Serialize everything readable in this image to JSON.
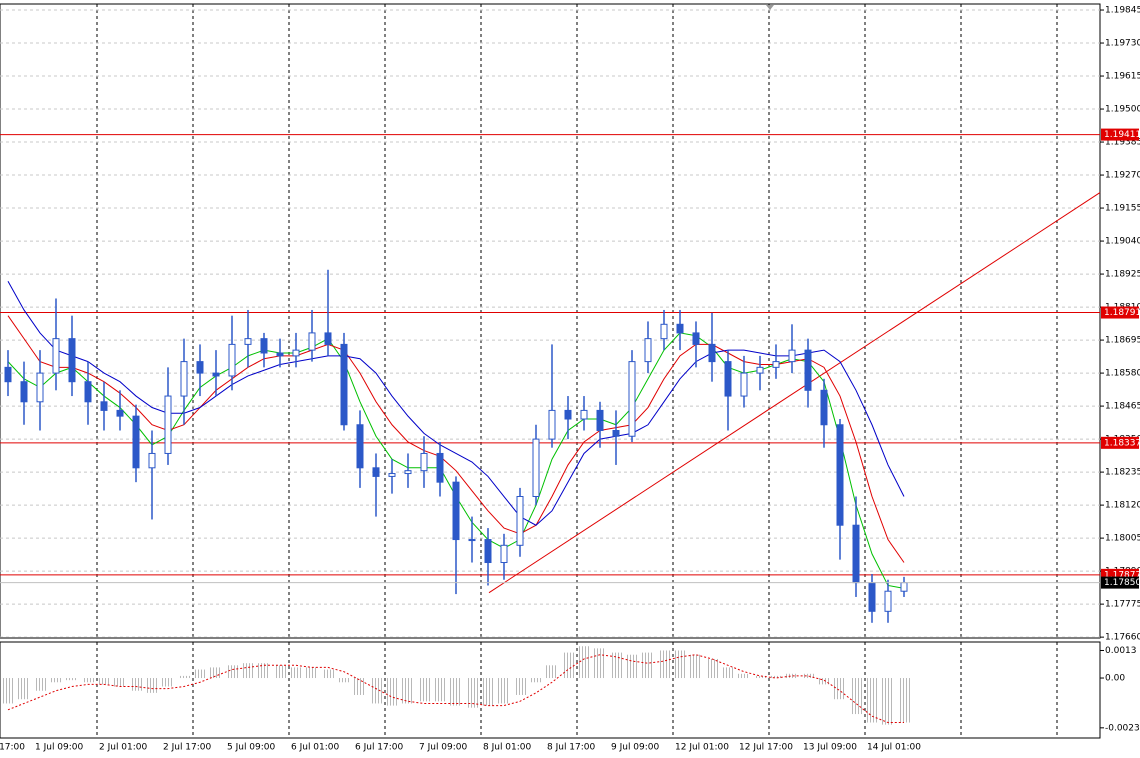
{
  "chart_data": {
    "type": "candlestick",
    "grid": true,
    "ylim": [
      1.17657,
      1.19866
    ],
    "yticks": [
      {
        "value": 1.19845,
        "label": "1.19845"
      },
      {
        "value": 1.1973,
        "label": "1.19730"
      },
      {
        "value": 1.19615,
        "label": "1.19615"
      },
      {
        "value": 1.195,
        "label": "1.19500"
      },
      {
        "value": 1.19385,
        "label": "1.19385"
      },
      {
        "value": 1.1927,
        "label": "1.19270"
      },
      {
        "value": 1.19155,
        "label": "1.19155"
      },
      {
        "value": 1.1904,
        "label": "1.19040"
      },
      {
        "value": 1.18925,
        "label": "1.18925"
      },
      {
        "value": 1.1881,
        "label": "1.18810"
      },
      {
        "value": 1.18695,
        "label": "1.18695"
      },
      {
        "value": 1.1858,
        "label": "1.18580"
      },
      {
        "value": 1.18465,
        "label": "1.18465"
      },
      {
        "value": 1.1835,
        "label": "1.18350"
      },
      {
        "value": 1.18235,
        "label": "1.18235"
      },
      {
        "value": 1.1812,
        "label": "1.18120"
      },
      {
        "value": 1.18005,
        "label": "1.18005"
      },
      {
        "value": 1.1789,
        "label": "1.17890"
      },
      {
        "value": 1.17775,
        "label": "1.17775"
      },
      {
        "value": 1.1766,
        "label": "1.17660"
      }
    ],
    "x_labels": [
      "17:00",
      "1 Jul 09:00",
      "2 Jul 01:00",
      "2 Jul 17:00",
      "5 Jul 09:00",
      "6 Jul 01:00",
      "6 Jul 17:00",
      "7 Jul 09:00",
      "8 Jul 01:00",
      "8 Jul 17:00",
      "9 Jul 09:00",
      "12 Jul 01:00",
      "12 Jul 17:00",
      "13 Jul 09:00",
      "14 Jul 01:00"
    ],
    "candle_color": "#2c58c8",
    "open": [
      1.186,
      1.1855,
      1.1848,
      1.1858,
      1.187,
      1.1855,
      1.1848,
      1.1845,
      1.1843,
      1.1825,
      1.183,
      1.185,
      1.1862,
      1.1858,
      1.1857,
      1.1868,
      1.187,
      1.1865,
      1.1864,
      1.1866,
      1.1872,
      1.1868,
      1.184,
      1.1825,
      1.1822,
      1.1823,
      1.1824,
      1.183,
      1.182,
      1.18,
      1.18,
      1.1792,
      1.1798,
      1.1815,
      1.1835,
      1.1845,
      1.1842,
      1.1845,
      1.1838,
      1.1836,
      1.1862,
      1.187,
      1.1875,
      1.1872,
      1.1868,
      1.1862,
      1.185,
      1.1858,
      1.186,
      1.1862,
      1.1866,
      1.1852,
      1.184,
      1.1805,
      1.1785,
      1.1775,
      1.1782
    ],
    "high": [
      1.1866,
      1.1862,
      1.1866,
      1.1884,
      1.1878,
      1.1862,
      1.1855,
      1.1852,
      1.1847,
      1.1838,
      1.186,
      1.187,
      1.1868,
      1.1866,
      1.1878,
      1.188,
      1.1872,
      1.187,
      1.1872,
      1.188,
      1.1894,
      1.1872,
      1.1845,
      1.183,
      1.1828,
      1.183,
      1.1836,
      1.1834,
      1.1822,
      1.1808,
      1.1804,
      1.1802,
      1.1818,
      1.184,
      1.1868,
      1.185,
      1.185,
      1.1848,
      1.1845,
      1.1866,
      1.1876,
      1.188,
      1.188,
      1.1876,
      1.1879,
      1.1866,
      1.1864,
      1.1864,
      1.1868,
      1.1875,
      1.187,
      1.1856,
      1.1842,
      1.1815,
      1.1788,
      1.1786,
      1.1787
    ],
    "low": [
      1.185,
      1.184,
      1.1838,
      1.1852,
      1.185,
      1.184,
      1.1838,
      1.1838,
      1.182,
      1.1807,
      1.1826,
      1.184,
      1.185,
      1.185,
      1.1852,
      1.186,
      1.186,
      1.186,
      1.186,
      1.1862,
      1.1864,
      1.1838,
      1.1818,
      1.1808,
      1.1816,
      1.1818,
      1.1818,
      1.1815,
      1.1781,
      1.1792,
      1.1784,
      1.1786,
      1.1794,
      1.1812,
      1.1832,
      1.1835,
      1.1838,
      1.1832,
      1.1826,
      1.1834,
      1.1858,
      1.1866,
      1.1866,
      1.186,
      1.1855,
      1.1838,
      1.1846,
      1.1852,
      1.1856,
      1.1858,
      1.1846,
      1.1832,
      1.1793,
      1.178,
      1.1771,
      1.1771,
      1.178
    ],
    "close": [
      1.1855,
      1.1848,
      1.1858,
      1.187,
      1.1855,
      1.1848,
      1.1845,
      1.1843,
      1.1825,
      1.183,
      1.185,
      1.1862,
      1.1858,
      1.1857,
      1.1868,
      1.187,
      1.1865,
      1.1864,
      1.1866,
      1.1872,
      1.1868,
      1.184,
      1.1825,
      1.1822,
      1.1823,
      1.1824,
      1.183,
      1.182,
      1.18,
      1.18,
      1.1792,
      1.1798,
      1.1815,
      1.1835,
      1.1845,
      1.1842,
      1.1845,
      1.1838,
      1.1836,
      1.1862,
      1.187,
      1.1875,
      1.1872,
      1.1868,
      1.1862,
      1.185,
      1.1858,
      1.186,
      1.1862,
      1.1866,
      1.1852,
      1.184,
      1.1805,
      1.1785,
      1.1775,
      1.1782,
      1.1785
    ],
    "moving_averages": [
      {
        "color": "#00c000",
        "values": [
          1.1862,
          1.1856,
          1.1853,
          1.1858,
          1.186,
          1.1855,
          1.185,
          1.1846,
          1.184,
          1.1833,
          1.1836,
          1.1845,
          1.1853,
          1.1857,
          1.186,
          1.1864,
          1.1866,
          1.1865,
          1.1865,
          1.1867,
          1.187,
          1.1862,
          1.1848,
          1.1836,
          1.1828,
          1.1825,
          1.1825,
          1.1825,
          1.1815,
          1.1806,
          1.18,
          1.1797,
          1.18,
          1.1812,
          1.1828,
          1.1838,
          1.1842,
          1.1842,
          1.184,
          1.1846,
          1.1856,
          1.1866,
          1.1872,
          1.1871,
          1.1867,
          1.186,
          1.1858,
          1.1859,
          1.1861,
          1.1863,
          1.1862,
          1.1855,
          1.1835,
          1.1812,
          1.1795,
          1.1784,
          1.1783
        ]
      },
      {
        "color": "#e00000",
        "values": [
          1.1878,
          1.187,
          1.1862,
          1.186,
          1.186,
          1.1858,
          1.1855,
          1.1851,
          1.1846,
          1.184,
          1.1838,
          1.184,
          1.1846,
          1.1852,
          1.1856,
          1.186,
          1.1863,
          1.1864,
          1.1864,
          1.1866,
          1.1868,
          1.1866,
          1.1858,
          1.1848,
          1.184,
          1.1834,
          1.1831,
          1.1829,
          1.1824,
          1.1817,
          1.181,
          1.1804,
          1.1802,
          1.1805,
          1.1815,
          1.1826,
          1.1834,
          1.1838,
          1.1839,
          1.184,
          1.1846,
          1.1856,
          1.1864,
          1.1868,
          1.1868,
          1.1865,
          1.1862,
          1.1861,
          1.1861,
          1.1862,
          1.1863,
          1.186,
          1.185,
          1.1834,
          1.1815,
          1.18,
          1.1792
        ]
      },
      {
        "color": "#0000c8",
        "values": [
          1.189,
          1.188,
          1.1872,
          1.1866,
          1.1864,
          1.1862,
          1.1858,
          1.1855,
          1.185,
          1.1846,
          1.1844,
          1.1844,
          1.1846,
          1.185,
          1.1854,
          1.1857,
          1.1859,
          1.1861,
          1.1862,
          1.1863,
          1.1864,
          1.1864,
          1.1863,
          1.1858,
          1.185,
          1.1843,
          1.1837,
          1.1833,
          1.183,
          1.1827,
          1.1822,
          1.1815,
          1.1808,
          1.1805,
          1.181,
          1.182,
          1.183,
          1.1835,
          1.1836,
          1.1837,
          1.184,
          1.1848,
          1.1856,
          1.1862,
          1.1865,
          1.1866,
          1.1866,
          1.1865,
          1.1864,
          1.1864,
          1.1865,
          1.1866,
          1.1862,
          1.1852,
          1.184,
          1.1826,
          1.1815
        ]
      }
    ],
    "level_color": "#e00000",
    "levels": [
      {
        "value": 1.19411,
        "label": "1.19411"
      },
      {
        "value": 1.18791,
        "label": "1.18791"
      },
      {
        "value": 1.18337,
        "label": "1.18337"
      },
      {
        "value": 1.17877,
        "label": "1.17877"
      }
    ],
    "current_price": {
      "value": 1.1785,
      "label": "1.17850"
    },
    "trendline": {
      "color": "#e00000",
      "values": [
        1.17815,
        1.19209
      ]
    },
    "oscillator": {
      "ylim": [
        -0.00283,
        0.0017
      ],
      "yticks": [
        0.0013,
        {
          "value": 0,
          "label": "0.00"
        },
        -0.00235
      ],
      "histogram_color": "#b8b8b8",
      "signal_color": "#e00000",
      "histogram": [
        -0.0012,
        -0.001,
        -0.0006,
        -0.0002,
        -0.0001,
        -0.0002,
        -0.0003,
        -0.0004,
        -0.0006,
        -0.0007,
        -0.0004,
        0.0001,
        0.0004,
        0.0005,
        0.0006,
        0.0007,
        0.0007,
        0.0006,
        0.0005,
        0.0005,
        0.0004,
        -0.0002,
        -0.0008,
        -0.0012,
        -0.0013,
        -0.0012,
        -0.0011,
        -0.0011,
        -0.0013,
        -0.0014,
        -0.0013,
        -0.0012,
        -0.0008,
        -0.0002,
        0.0006,
        0.0012,
        0.0015,
        0.0014,
        0.0012,
        0.0011,
        0.0012,
        0.0013,
        0.0013,
        0.0011,
        0.0009,
        0.0005,
        0.0002,
        0.0001,
        0.0001,
        0.0002,
        0.0002,
        -0.0003,
        -0.001,
        -0.0017,
        -0.0021,
        -0.0022,
        -0.0021
      ],
      "signal": [
        -0.0015,
        -0.0012,
        -0.0009,
        -0.0006,
        -0.0004,
        -0.0003,
        -0.0003,
        -0.0004,
        -0.0004,
        -0.0005,
        -0.0005,
        -0.0004,
        -0.0002,
        0.0001,
        0.0004,
        0.0005,
        0.0006,
        0.0006,
        0.0006,
        0.0005,
        0.0005,
        0.0003,
        -0.0001,
        -0.0005,
        -0.0009,
        -0.0011,
        -0.0012,
        -0.0012,
        -0.0012,
        -0.0012,
        -0.0013,
        -0.0013,
        -0.0011,
        -0.0007,
        -0.0002,
        0.0004,
        0.0009,
        0.0011,
        0.001,
        0.0008,
        0.0007,
        0.0008,
        0.001,
        0.0011,
        0.0009,
        0.0006,
        0.0003,
        0.0001,
        0.0,
        0.0001,
        0.0001,
        -0.0001,
        -0.0006,
        -0.0012,
        -0.0018,
        -0.0021,
        -0.0021
      ]
    }
  }
}
